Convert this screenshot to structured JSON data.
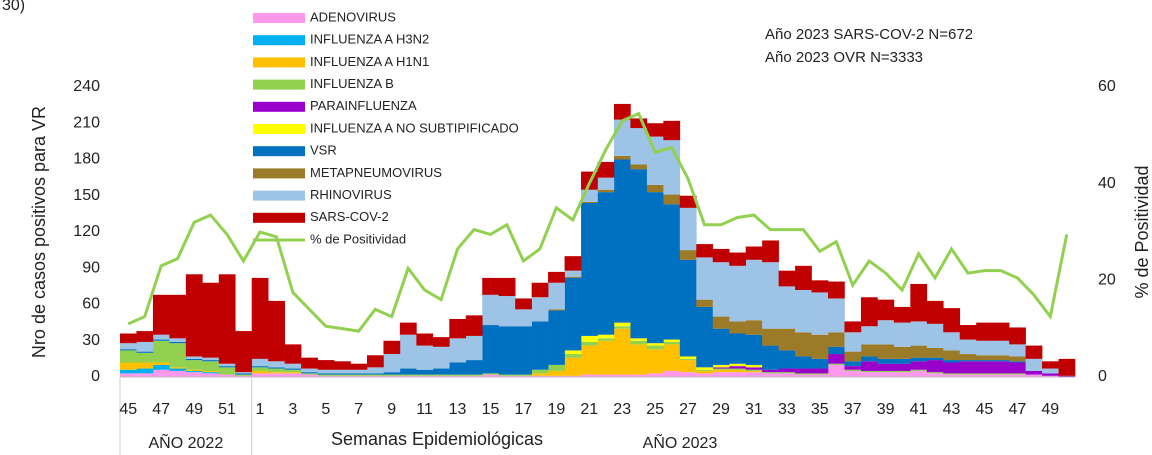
{
  "chart_data": {
    "type": "bar",
    "stacked": true,
    "corner_label": "30)",
    "annotations": [
      "Año 2023 SARS-COV-2 N=672",
      "Año 2023 OVR N=3333"
    ],
    "y_label": "Nro de casos positivos para VR",
    "y2_label": "% de Positividad",
    "x_label": "Semanas Epidemiológicas",
    "x_groups": [
      "AÑO 2022",
      "AÑO 2023"
    ],
    "categories": [
      "45",
      null,
      "47",
      null,
      "49",
      null,
      "51",
      null,
      "1",
      null,
      "3",
      null,
      "5",
      null,
      "7",
      null,
      "9",
      null,
      "11",
      null,
      "13",
      null,
      "15",
      null,
      "17",
      null,
      "19",
      null,
      "21",
      null,
      "23",
      null,
      "25",
      null,
      "27",
      null,
      "29",
      null,
      "31",
      null,
      "33",
      null,
      "35",
      null,
      "37",
      null,
      "39",
      null,
      "41",
      null,
      "43",
      null,
      "45",
      null,
      "47",
      null,
      "49",
      null
    ],
    "ylim": [
      0,
      240
    ],
    "yticks": [
      0,
      30,
      60,
      90,
      120,
      150,
      180,
      210,
      240
    ],
    "y2lim": [
      0,
      60
    ],
    "y2ticks": [
      0,
      20,
      40,
      60
    ],
    "series": [
      {
        "name": "ADENOVIRUS",
        "color": "#ff99ee",
        "values": [
          3,
          3,
          6,
          5,
          4,
          3,
          2,
          1,
          3,
          3,
          3,
          2,
          1,
          1,
          1,
          1,
          1,
          1,
          1,
          1,
          1,
          1,
          2,
          1,
          1,
          1,
          1,
          1,
          2,
          2,
          2,
          2,
          3,
          5,
          4,
          3,
          4,
          4,
          4,
          3,
          3,
          2,
          2,
          10,
          5,
          4,
          4,
          4,
          5,
          3,
          2,
          2,
          2,
          2,
          2,
          2,
          1,
          0
        ]
      },
      {
        "name": "INFLUENZA A H3N2",
        "color": "#00b0f0",
        "values": [
          3,
          4,
          4,
          2,
          1,
          1,
          0,
          0,
          0,
          0,
          0,
          0,
          0,
          0,
          0,
          0,
          0,
          0,
          0,
          0,
          0,
          0,
          0,
          0,
          0,
          0,
          0,
          0,
          0,
          0,
          0,
          0,
          0,
          0,
          0,
          0,
          0,
          0,
          0,
          0,
          0,
          0,
          0,
          0,
          0,
          0,
          0,
          0,
          0,
          0,
          0,
          0,
          0,
          0,
          0,
          0,
          0,
          0
        ]
      },
      {
        "name": "INFLUENZA A H1N1",
        "color": "#ffc000",
        "values": [
          6,
          5,
          2,
          1,
          1,
          1,
          0,
          0,
          2,
          1,
          1,
          0,
          0,
          0,
          0,
          0,
          0,
          0,
          0,
          0,
          0,
          0,
          0,
          0,
          0,
          2,
          4,
          15,
          24,
          28,
          38,
          25,
          20,
          22,
          10,
          2,
          2,
          2,
          1,
          0,
          0,
          0,
          0,
          0,
          0,
          0,
          0,
          0,
          0,
          0,
          0,
          0,
          0,
          0,
          0,
          0,
          0,
          0
        ]
      },
      {
        "name": "INFLUENZA B",
        "color": "#92d050",
        "values": [
          10,
          8,
          18,
          20,
          8,
          8,
          6,
          1,
          3,
          3,
          2,
          1,
          1,
          1,
          1,
          1,
          1,
          1,
          1,
          1,
          1,
          1,
          1,
          1,
          1,
          3,
          5,
          3,
          3,
          2,
          2,
          3,
          3,
          2,
          1,
          1,
          1,
          1,
          1,
          1,
          1,
          1,
          1,
          1,
          1,
          1,
          1,
          1,
          1,
          1,
          1,
          1,
          1,
          1,
          1,
          0,
          0,
          0
        ]
      },
      {
        "name": "PARAINFLUENZA",
        "color": "#9900cc",
        "values": [
          0,
          0,
          0,
          0,
          0,
          0,
          0,
          0,
          0,
          0,
          0,
          0,
          0,
          0,
          0,
          0,
          0,
          0,
          0,
          0,
          0,
          0,
          0,
          0,
          0,
          0,
          0,
          0,
          0,
          0,
          0,
          0,
          0,
          0,
          0,
          0,
          1,
          2,
          2,
          2,
          3,
          4,
          4,
          8,
          3,
          8,
          6,
          6,
          7,
          10,
          9,
          10,
          10,
          10,
          9,
          3,
          2,
          1
        ]
      },
      {
        "name": "INFLUENZA A NO SUBTIPIFICADO",
        "color": "#ffff00",
        "values": [
          0,
          0,
          0,
          0,
          0,
          0,
          0,
          0,
          0,
          0,
          0,
          0,
          0,
          0,
          0,
          0,
          0,
          0,
          0,
          0,
          0,
          0,
          0,
          0,
          0,
          0,
          0,
          3,
          5,
          3,
          3,
          2,
          2,
          2,
          2,
          2,
          2,
          2,
          2,
          0,
          0,
          0,
          0,
          0,
          0,
          0,
          0,
          0,
          0,
          0,
          0,
          0,
          0,
          0,
          0,
          0,
          0,
          0
        ]
      },
      {
        "name": "VSR",
        "color": "#0070c0",
        "values": [
          1,
          1,
          1,
          1,
          1,
          1,
          1,
          1,
          1,
          1,
          1,
          1,
          1,
          1,
          1,
          1,
          2,
          5,
          4,
          5,
          10,
          12,
          40,
          40,
          40,
          40,
          45,
          60,
          110,
          118,
          135,
          140,
          125,
          112,
          80,
          50,
          30,
          25,
          25,
          20,
          15,
          10,
          8,
          6,
          4,
          4,
          4,
          4,
          3,
          2,
          2,
          1,
          1,
          1,
          1,
          0,
          0,
          0
        ]
      },
      {
        "name": "METAPNEUMOVIRUS",
        "color": "#9b7a28",
        "values": [
          0,
          0,
          0,
          0,
          0,
          0,
          0,
          0,
          0,
          0,
          0,
          0,
          0,
          0,
          0,
          0,
          0,
          0,
          0,
          0,
          0,
          0,
          0,
          0,
          0,
          0,
          1,
          1,
          1,
          2,
          3,
          4,
          6,
          8,
          8,
          6,
          10,
          10,
          12,
          14,
          18,
          20,
          20,
          12,
          8,
          10,
          12,
          10,
          10,
          8,
          8,
          5,
          4,
          4,
          4,
          0,
          0,
          0
        ]
      },
      {
        "name": "RHINOVIRUS",
        "color": "#9dc3e6",
        "values": [
          5,
          8,
          4,
          3,
          2,
          2,
          2,
          1,
          6,
          5,
          4,
          3,
          3,
          3,
          3,
          5,
          15,
          28,
          20,
          18,
          20,
          20,
          25,
          25,
          14,
          20,
          22,
          5,
          10,
          10,
          30,
          30,
          40,
          45,
          35,
          35,
          45,
          46,
          50,
          55,
          35,
          35,
          35,
          28,
          16,
          15,
          20,
          20,
          20,
          20,
          15,
          12,
          12,
          12,
          10,
          10,
          4,
          0
        ]
      },
      {
        "name": "SARS-COV-2",
        "color": "#c00000",
        "values": [
          8,
          9,
          33,
          36,
          68,
          62,
          74,
          34,
          67,
          50,
          16,
          9,
          8,
          7,
          5,
          10,
          11,
          10,
          10,
          8,
          16,
          17,
          14,
          15,
          9,
          12,
          9,
          12,
          15,
          13,
          13,
          8,
          11,
          16,
          10,
          11,
          11,
          11,
          11,
          18,
          13,
          20,
          10,
          14,
          9,
          24,
          17,
          13,
          31,
          19,
          20,
          12,
          15,
          15,
          14,
          11,
          6,
          14
        ]
      },
      {
        "name": "% de Positividad",
        "color": "#92d050",
        "type": "line",
        "axis": "y2",
        "values": [
          11,
          12.5,
          23,
          24.5,
          32,
          33.5,
          29.5,
          24,
          30,
          29,
          17.5,
          14,
          10.5,
          10,
          9.5,
          14,
          12.5,
          22.5,
          18,
          16,
          26.5,
          30.5,
          29.5,
          31.5,
          24,
          26.5,
          35,
          32.5,
          40,
          47,
          53,
          54.5,
          46.5,
          47.5,
          41,
          31.5,
          31.5,
          33,
          33.5,
          30.5,
          30.5,
          30.5,
          26,
          28,
          19,
          24,
          21.5,
          18,
          25.5,
          20.5,
          26.5,
          21.5,
          22,
          22,
          20.5,
          17,
          12.5,
          29.5
        ]
      }
    ]
  }
}
